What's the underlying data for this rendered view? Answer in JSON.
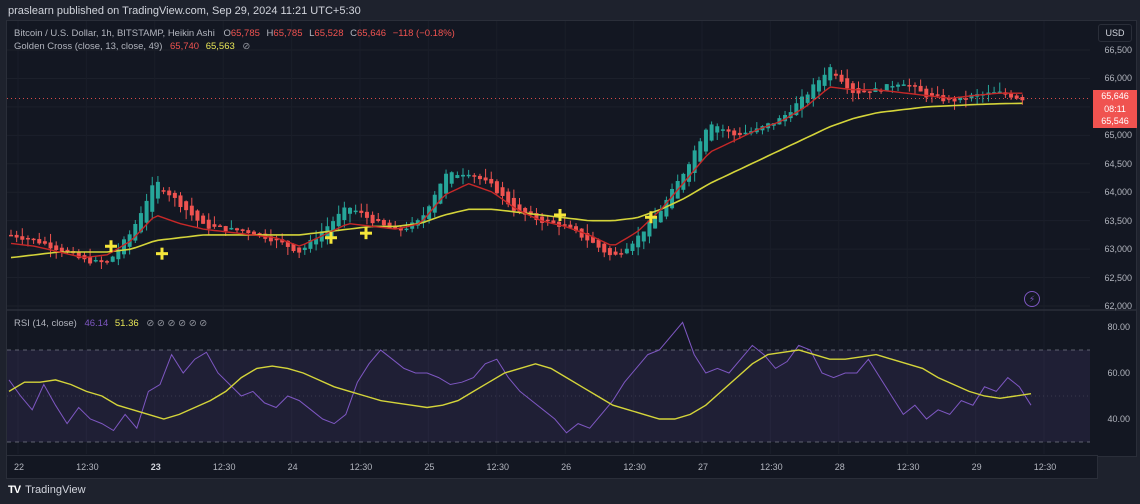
{
  "header": {
    "publisher_line": "praslearn published on TradingView.com, Sep 29, 2024 11:21 UTC+5:30"
  },
  "legend": {
    "symbol": "Bitcoin / U.S. Dollar, 1h, BITSTAMP, Heikin Ashi",
    "ohlc": {
      "O": "65,785",
      "H": "65,785",
      "L": "65,528",
      "C": "65,646",
      "change": "−118 (−0.18%)"
    },
    "indicator1": {
      "name": "Golden Cross (close, 13, close, 49)",
      "fast": "65,740",
      "slow": "65,563",
      "icon": "⊘"
    },
    "indicator2": {
      "name": "RSI (14, close)",
      "rsi": "46.14",
      "ma": "51.36",
      "icons": "⊘ ⊘ ⊘ ⊘ ⊘ ⊘"
    }
  },
  "price_axis": {
    "currency": "USD",
    "ticks": [
      "66,500",
      "66,000",
      "65,500",
      "65,000",
      "64,500",
      "64,000",
      "63,500",
      "63,000",
      "62,500",
      "62,000"
    ],
    "last_price": "65,646",
    "countdown": "08:11",
    "secondary_price": "65,546"
  },
  "rsi_axis": {
    "ticks": [
      "80.00",
      "60.00",
      "40.00"
    ]
  },
  "time_axis": {
    "labels": [
      {
        "t": "22",
        "bold": false
      },
      {
        "t": "12:30",
        "bold": false
      },
      {
        "t": "23",
        "bold": true
      },
      {
        "t": "12:30",
        "bold": false
      },
      {
        "t": "24",
        "bold": false
      },
      {
        "t": "12:30",
        "bold": false
      },
      {
        "t": "25",
        "bold": false
      },
      {
        "t": "12:30",
        "bold": false
      },
      {
        "t": "26",
        "bold": false
      },
      {
        "t": "12:30",
        "bold": false
      },
      {
        "t": "27",
        "bold": false
      },
      {
        "t": "12:30",
        "bold": false
      },
      {
        "t": "28",
        "bold": false
      },
      {
        "t": "12:30",
        "bold": false
      },
      {
        "t": "29",
        "bold": false
      },
      {
        "t": "12:30",
        "bold": false
      }
    ]
  },
  "footer": {
    "brand": "TradingView",
    "logo": "TV"
  },
  "colors": {
    "up": "#26a69a",
    "down": "#ef5350",
    "fast_ma": "#c62828",
    "slow_ma": "#d4d43a",
    "rsi": "#7e57c2",
    "rsi_ma": "#d4d43a",
    "cross": "#f5e63a",
    "bg": "#131722"
  },
  "chart_data": [
    {
      "type": "candlestick",
      "title": "Bitcoin / U.S. Dollar, 1h, BITSTAMP, Heikin Ashi",
      "xlabel": "",
      "ylabel": "USD",
      "ylim": [
        62000,
        66700
      ],
      "x_ticks": [
        "22",
        "12:30",
        "23",
        "12:30",
        "24",
        "12:30",
        "25",
        "12:30",
        "26",
        "12:30",
        "27",
        "12:30",
        "28",
        "12:30",
        "29",
        "12:30"
      ],
      "series": [
        {
          "name": "Heikin Ashi close (approx, sampled every ~4h)",
          "values": [
            63250,
            63150,
            63000,
            62800,
            62750,
            63300,
            64200,
            63800,
            63400,
            63350,
            63300,
            63150,
            62950,
            63350,
            63750,
            63500,
            63300,
            63500,
            64300,
            64350,
            64100,
            63650,
            63500,
            63400,
            63150,
            62850,
            63200,
            63700,
            64400,
            65250,
            65000,
            65100,
            65300,
            65700,
            66200,
            65750,
            65800,
            65950,
            65700,
            65600,
            65700,
            65750,
            65646
          ]
        },
        {
          "name": "Golden Cross fast MA (13)",
          "values": [
            63100,
            63050,
            62950,
            62850,
            62900,
            63150,
            63600,
            63450,
            63350,
            63300,
            63250,
            63200,
            63050,
            63250,
            63450,
            63400,
            63350,
            63450,
            63950,
            64150,
            64000,
            63700,
            63500,
            63400,
            63250,
            63050,
            63300,
            63700,
            64200,
            64700,
            64900,
            65100,
            65250,
            65500,
            65850,
            65800,
            65800,
            65750,
            65700,
            65650,
            65700,
            65740,
            65740
          ]
        },
        {
          "name": "Golden Cross slow MA (49)",
          "values": [
            62850,
            62900,
            62950,
            62950,
            62950,
            63000,
            63150,
            63200,
            63250,
            63250,
            63250,
            63250,
            63250,
            63300,
            63350,
            63400,
            63400,
            63450,
            63600,
            63700,
            63700,
            63650,
            63600,
            63550,
            63500,
            63500,
            63550,
            63700,
            63900,
            64150,
            64350,
            64550,
            64750,
            64950,
            65150,
            65300,
            65400,
            65450,
            65500,
            65520,
            65540,
            65555,
            65563
          ]
        }
      ],
      "annotations": [
        "Golden cross markers (yellow +) near 23 ~03:00, 23 ~08:00, 24 ~15:00, 24 ~20:00, 26 ~03:00, 26 ~16:00",
        "Price line at 65,646"
      ]
    },
    {
      "type": "line",
      "title": "RSI (14, close)",
      "ylim": [
        30,
        85
      ],
      "bands": [
        70,
        50,
        30
      ],
      "y_ticks": [
        "80.00",
        "60.00",
        "40.00"
      ],
      "series": [
        {
          "name": "RSI",
          "values": [
            57,
            50,
            44,
            55,
            46,
            38,
            45,
            40,
            38,
            35,
            42,
            36,
            52,
            55,
            68,
            60,
            66,
            69,
            60,
            55,
            50,
            52,
            47,
            45,
            50,
            48,
            44,
            40,
            38,
            42,
            56,
            64,
            70,
            66,
            62,
            60,
            60,
            58,
            55,
            56,
            58,
            64,
            66,
            58,
            52,
            48,
            44,
            40,
            34,
            38,
            36,
            42,
            48,
            56,
            62,
            68,
            70,
            76,
            82,
            68,
            60,
            62,
            60,
            66,
            72,
            68,
            62,
            65,
            72,
            70,
            60,
            58,
            60,
            60,
            66,
            58,
            50,
            42,
            46,
            40,
            44,
            42,
            48,
            46,
            54,
            52,
            58,
            54,
            46
          ]
        },
        {
          "name": "RSI-based MA",
          "values": [
            52,
            56,
            56,
            57,
            55,
            52,
            50,
            46,
            44,
            42,
            40,
            42,
            45,
            48,
            52,
            58,
            62,
            63,
            62,
            60,
            57,
            54,
            52,
            50,
            48,
            47,
            46,
            45,
            46,
            48,
            52,
            56,
            60,
            62,
            64,
            62,
            58,
            54,
            50,
            46,
            44,
            42,
            40,
            40,
            42,
            46,
            52,
            58,
            64,
            68,
            69,
            70,
            68,
            66,
            66,
            67,
            68,
            66,
            64,
            62,
            58,
            55,
            52,
            50,
            49,
            50,
            51
          ]
        }
      ]
    }
  ]
}
